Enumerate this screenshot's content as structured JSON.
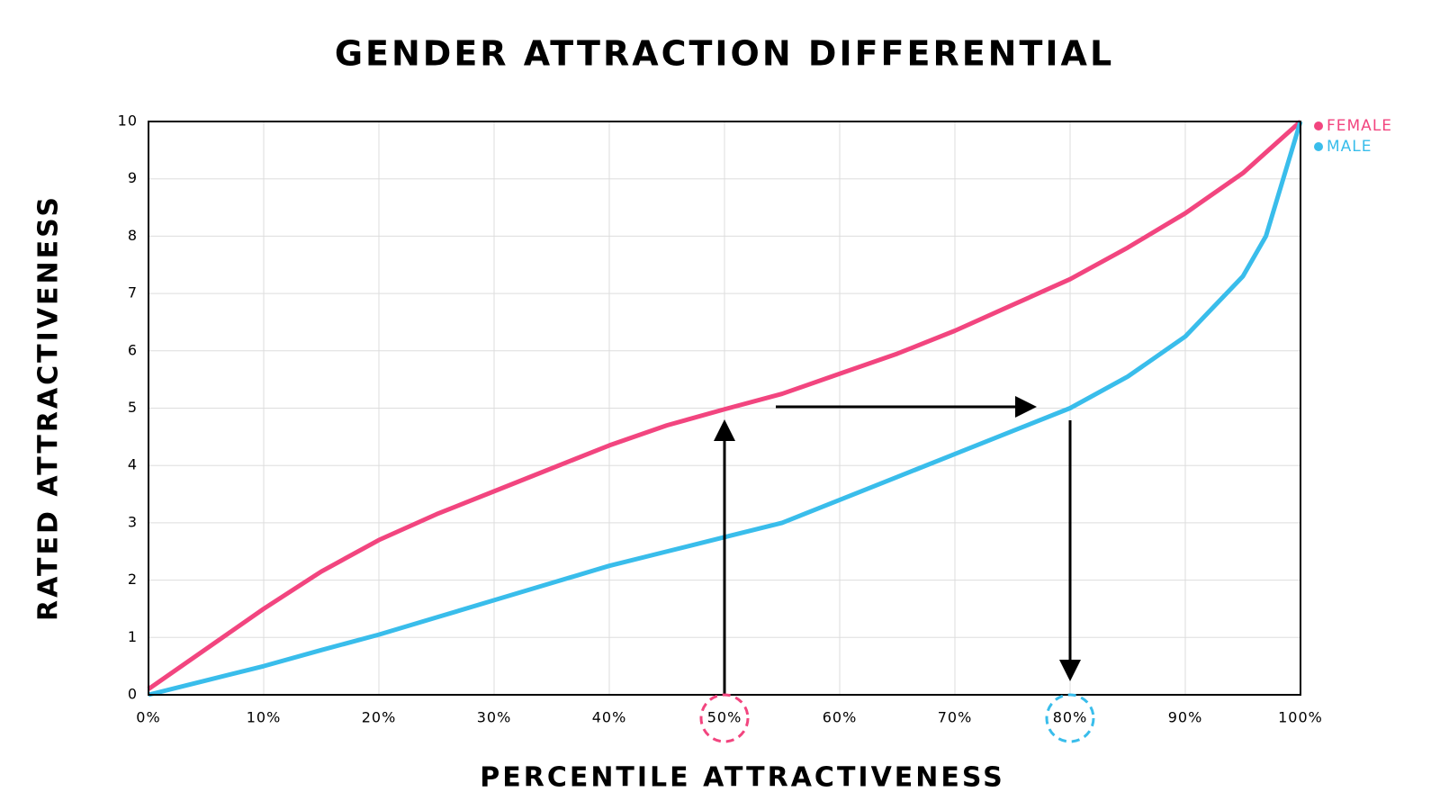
{
  "chart_data": {
    "type": "line",
    "title": "GENDER ATTRACTION DIFFERENTIAL",
    "x_label": "PERCENTILE ATTRACTIVENESS",
    "y_label": "RATED ATTRACTIVENESS",
    "xlim": [
      0,
      100
    ],
    "ylim": [
      0,
      10
    ],
    "xticks": [
      {
        "value": 0,
        "label": "0%"
      },
      {
        "value": 10,
        "label": "10%"
      },
      {
        "value": 20,
        "label": "20%"
      },
      {
        "value": 30,
        "label": "30%"
      },
      {
        "value": 40,
        "label": "40%"
      },
      {
        "value": 50,
        "label": "50%"
      },
      {
        "value": 60,
        "label": "60%"
      },
      {
        "value": 70,
        "label": "70%"
      },
      {
        "value": 80,
        "label": "80%"
      },
      {
        "value": 90,
        "label": "90%"
      },
      {
        "value": 100,
        "label": "100%"
      }
    ],
    "yticks": [
      0,
      1,
      2,
      3,
      4,
      5,
      6,
      7,
      8,
      9,
      10
    ],
    "grid": true,
    "series": [
      {
        "name": "FEMALE",
        "color": "#f2457f",
        "x": [
          0,
          5,
          10,
          15,
          20,
          25,
          30,
          35,
          40,
          45,
          50,
          55,
          60,
          65,
          70,
          75,
          80,
          85,
          90,
          95,
          100
        ],
        "values": [
          0.1,
          0.8,
          1.5,
          2.15,
          2.7,
          3.15,
          3.55,
          3.95,
          4.35,
          4.7,
          4.98,
          5.25,
          5.6,
          5.95,
          6.35,
          6.8,
          7.25,
          7.8,
          8.4,
          9.1,
          10
        ]
      },
      {
        "name": "MALE",
        "color": "#39bdeb",
        "x": [
          0,
          5,
          10,
          15,
          20,
          25,
          30,
          35,
          40,
          45,
          50,
          55,
          60,
          65,
          70,
          75,
          80,
          85,
          90,
          95,
          97,
          100
        ],
        "values": [
          0,
          0.25,
          0.5,
          0.78,
          1.05,
          1.35,
          1.65,
          1.95,
          2.25,
          2.5,
          2.75,
          3.0,
          3.4,
          3.8,
          4.2,
          4.6,
          5.0,
          5.55,
          6.25,
          7.3,
          8.0,
          10
        ]
      }
    ]
  }
}
